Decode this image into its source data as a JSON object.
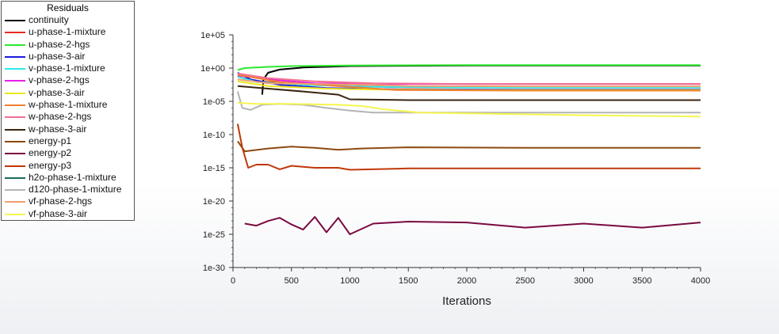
{
  "chart_data": {
    "type": "line",
    "title": "",
    "legend_title": "Residuals",
    "legend_position": "top-left",
    "xlabel": "Iterations",
    "ylabel": "",
    "y_scale": "log",
    "xlim": [
      0,
      4000
    ],
    "ylim": [
      1e-30,
      100000.0
    ],
    "x_ticks": [
      0,
      500,
      1000,
      1500,
      2000,
      2500,
      3000,
      3500,
      4000
    ],
    "x_tick_labels": [
      "0",
      "500",
      "1000",
      "1500",
      "2000",
      "2500",
      "3000",
      "3500",
      "4000"
    ],
    "y_ticks": [
      100000.0,
      1.0,
      1e-05,
      1e-10,
      1e-15,
      1e-20,
      1e-25,
      1e-30
    ],
    "y_tick_labels": [
      "1e+05",
      "1e+00",
      "1e-05",
      "1e-10",
      "1e-15",
      "1e-20",
      "1e-25",
      "1e-30"
    ],
    "grid": false,
    "series": [
      {
        "name": "continuity",
        "color": "#000000",
        "points": [
          [
            250,
            0.0001
          ],
          [
            260,
            0.02
          ],
          [
            300,
            0.2
          ],
          [
            400,
            0.6
          ],
          [
            600,
            1.2
          ],
          [
            1000,
            2
          ],
          [
            2000,
            2.5
          ],
          [
            3000,
            2.5
          ],
          [
            4000,
            2.5
          ]
        ]
      },
      {
        "name": "u-phase-1-mixture",
        "color": "#e8281e",
        "points": [
          [
            40,
            0.05
          ],
          [
            200,
            0.01
          ],
          [
            500,
            0.005
          ],
          [
            1000,
            0.002
          ],
          [
            1500,
            0.0012
          ],
          [
            2500,
            0.0012
          ],
          [
            4000,
            0.0012
          ]
        ]
      },
      {
        "name": "u-phase-2-hgs",
        "color": "#2ee82e",
        "points": [
          [
            40,
            0.5
          ],
          [
            100,
            1
          ],
          [
            300,
            1.5
          ],
          [
            500,
            2
          ],
          [
            1000,
            2.5
          ],
          [
            2000,
            2.8
          ],
          [
            3000,
            2.8
          ],
          [
            4000,
            2.8
          ]
        ]
      },
      {
        "name": "u-phase-3-air",
        "color": "#1a1adc",
        "points": [
          [
            40,
            0.2
          ],
          [
            150,
            0.02
          ],
          [
            400,
            0.003
          ],
          [
            800,
            0.001
          ],
          [
            1500,
            0.0006
          ],
          [
            2500,
            0.0006
          ],
          [
            4000,
            0.0006
          ]
        ]
      },
      {
        "name": "v-phase-1-mixture",
        "color": "#2ee8e8",
        "points": [
          [
            40,
            0.05
          ],
          [
            200,
            0.008
          ],
          [
            600,
            0.003
          ],
          [
            1200,
            0.0015
          ],
          [
            2000,
            0.0012
          ],
          [
            4000,
            0.0012
          ]
        ]
      },
      {
        "name": "v-phase-2-hgs",
        "color": "#e81ee8",
        "points": [
          [
            40,
            0.08
          ],
          [
            300,
            0.02
          ],
          [
            700,
            0.005
          ],
          [
            1300,
            0.004
          ],
          [
            2000,
            0.004
          ],
          [
            4000,
            0.004
          ]
        ]
      },
      {
        "name": "v-phase-3-air",
        "color": "#e8e81e",
        "points": [
          [
            40,
            0.01
          ],
          [
            300,
            0.002
          ],
          [
            800,
            0.0008
          ],
          [
            1200,
            0.0006
          ],
          [
            2000,
            0.0005
          ],
          [
            4000,
            0.0005
          ]
        ]
      },
      {
        "name": "w-phase-1-mixture",
        "color": "#f08030",
        "points": [
          [
            40,
            0.1
          ],
          [
            400,
            0.008
          ],
          [
            900,
            0.002
          ],
          [
            1400,
            0.0005
          ],
          [
            2500,
            0.0004
          ],
          [
            4000,
            0.0004
          ]
        ]
      },
      {
        "name": "w-phase-2-hgs",
        "color": "#f07090",
        "points": [
          [
            40,
            0.15
          ],
          [
            300,
            0.03
          ],
          [
            700,
            0.01
          ],
          [
            1200,
            0.005
          ],
          [
            2000,
            0.004
          ],
          [
            4000,
            0.004
          ]
        ]
      },
      {
        "name": "w-phase-3-air",
        "color": "#3a2510",
        "points": [
          [
            40,
            0.002
          ],
          [
            300,
            0.0008
          ],
          [
            600,
            0.0003
          ],
          [
            900,
            0.0001
          ],
          [
            1000,
            2e-05
          ],
          [
            1500,
            1.5e-05
          ],
          [
            2500,
            1.5e-05
          ],
          [
            4000,
            1.5e-05
          ]
        ]
      },
      {
        "name": "energy-p1",
        "color": "#8c4a10",
        "points": [
          [
            40,
            1e-11
          ],
          [
            100,
            3e-13
          ],
          [
            300,
            8e-13
          ],
          [
            500,
            1.5e-12
          ],
          [
            700,
            1e-12
          ],
          [
            900,
            5e-13
          ],
          [
            1100,
            8e-13
          ],
          [
            1500,
            1.2e-12
          ],
          [
            2500,
            1e-12
          ],
          [
            4000,
            1e-12
          ]
        ]
      },
      {
        "name": "energy-p2",
        "color": "#7a0a40",
        "points": [
          [
            100,
            4e-24
          ],
          [
            200,
            2e-24
          ],
          [
            300,
            1e-23
          ],
          [
            400,
            3e-23
          ],
          [
            500,
            3e-24
          ],
          [
            600,
            5e-25
          ],
          [
            700,
            4e-23
          ],
          [
            800,
            2e-25
          ],
          [
            900,
            3e-23
          ],
          [
            1000,
            1e-25
          ],
          [
            1200,
            4e-24
          ],
          [
            1500,
            8e-24
          ],
          [
            2000,
            6e-24
          ],
          [
            2500,
            1e-24
          ],
          [
            3000,
            4e-24
          ],
          [
            3500,
            1e-24
          ],
          [
            4000,
            6e-24
          ]
        ]
      },
      {
        "name": "energy-p3",
        "color": "#c0380a",
        "points": [
          [
            40,
            4e-09
          ],
          [
            80,
            1e-12
          ],
          [
            130,
            1e-15
          ],
          [
            200,
            3e-15
          ],
          [
            300,
            3e-15
          ],
          [
            400,
            6e-16
          ],
          [
            500,
            2e-15
          ],
          [
            700,
            1e-15
          ],
          [
            900,
            1e-15
          ],
          [
            1000,
            5e-16
          ],
          [
            1500,
            8e-16
          ],
          [
            2000,
            8e-16
          ],
          [
            3000,
            8e-16
          ],
          [
            4000,
            8e-16
          ]
        ]
      },
      {
        "name": "h2o-phase-1-mixture",
        "color": "#1a6a5a",
        "points": []
      },
      {
        "name": "d120-phase-1-mixture",
        "color": "#b4b4b4",
        "points": [
          [
            40,
            0.0003
          ],
          [
            80,
            1e-06
          ],
          [
            150,
            5e-07
          ],
          [
            250,
            3e-06
          ],
          [
            400,
            4e-06
          ],
          [
            600,
            3e-06
          ],
          [
            800,
            1e-06
          ],
          [
            1000,
            4e-07
          ],
          [
            1200,
            2e-07
          ],
          [
            1500,
            2e-07
          ],
          [
            2500,
            2e-07
          ],
          [
            4000,
            2e-07
          ]
        ]
      },
      {
        "name": "vf-phase-2-hgs",
        "color": "#f0a070",
        "points": [
          [
            40,
            0.02
          ],
          [
            300,
            0.005
          ],
          [
            700,
            0.004
          ],
          [
            1200,
            0.003
          ],
          [
            1500,
            0.002
          ],
          [
            2500,
            0.0018
          ],
          [
            4000,
            0.0018
          ]
        ]
      },
      {
        "name": "vf-phase-3-air",
        "color": "#f5f550",
        "points": [
          [
            40,
            6e-06
          ],
          [
            200,
            4e-06
          ],
          [
            500,
            4e-06
          ],
          [
            900,
            3e-06
          ],
          [
            1100,
            2e-06
          ],
          [
            1300,
            6e-07
          ],
          [
            1600,
            2e-07
          ],
          [
            2000,
            1.5e-07
          ],
          [
            3000,
            8e-08
          ],
          [
            4000,
            5e-08
          ]
        ]
      }
    ]
  }
}
